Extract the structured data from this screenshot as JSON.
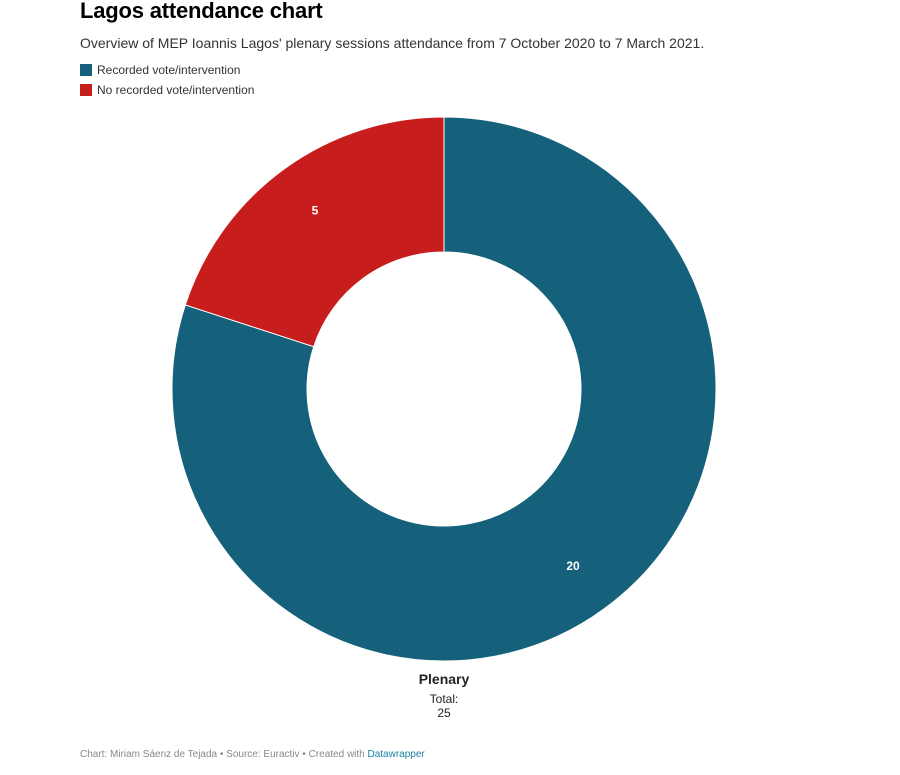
{
  "header": {
    "title": "Lagos attendance chart",
    "subtitle": "Overview of MEP Ioannis Lagos' plenary sessions attendance from 7 October 2020 to 7 March 2021."
  },
  "legend": [
    {
      "label": "Recorded vote/intervention",
      "color": "#15607a"
    },
    {
      "label": "No recorded vote/intervention",
      "color": "#c71e1d"
    }
  ],
  "chart_data": {
    "type": "pie",
    "style": "donut",
    "title": "Lagos attendance chart",
    "name": "Plenary",
    "total_label": "Total:",
    "total": 25,
    "slices": [
      {
        "label": "Recorded vote/intervention",
        "value": 20,
        "color": "#15607a"
      },
      {
        "label": "No recorded vote/intervention",
        "value": 5,
        "color": "#c71e1d"
      }
    ],
    "legend_position": "top-left"
  },
  "footer": {
    "credit": "Chart: Miriam Sáenz de Tejada • Source: Euractiv • Created with ",
    "link_text": "Datawrapper"
  }
}
